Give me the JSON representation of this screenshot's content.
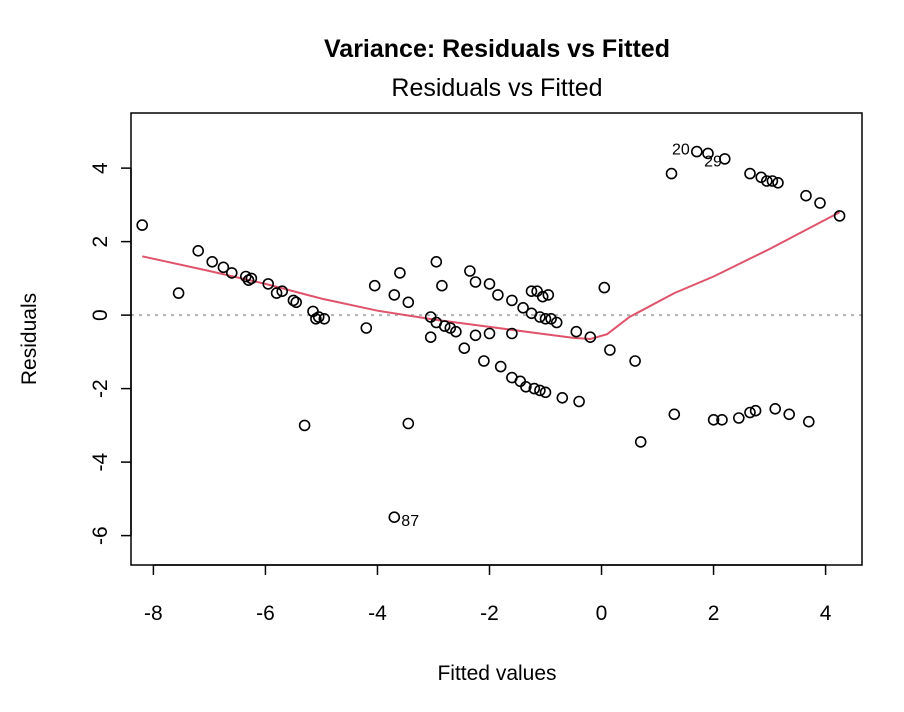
{
  "chart_data": {
    "type": "scatter",
    "title": "Variance: Residuals vs Fitted",
    "subtitle": "Residuals vs Fitted",
    "xlabel": "Fitted values",
    "ylabel": "Residuals",
    "xlim": [
      -8.4,
      4.65
    ],
    "ylim": [
      -6.8,
      5.5
    ],
    "x_ticks": [
      -8,
      -6,
      -4,
      -2,
      0,
      2,
      4
    ],
    "y_ticks": [
      -6,
      -4,
      -2,
      0,
      2,
      4
    ],
    "reference_line": {
      "y": 0,
      "style": "dotted",
      "color": "#b3b3b3"
    },
    "colors": {
      "points": "#000000",
      "smooth": "#df536b"
    },
    "points": [
      {
        "x": -8.2,
        "y": 2.45
      },
      {
        "x": -7.55,
        "y": 0.6
      },
      {
        "x": -7.2,
        "y": 1.75
      },
      {
        "x": -6.95,
        "y": 1.45
      },
      {
        "x": -6.75,
        "y": 1.3
      },
      {
        "x": -6.6,
        "y": 1.15
      },
      {
        "x": -6.35,
        "y": 1.05
      },
      {
        "x": -6.3,
        "y": 0.95
      },
      {
        "x": -6.25,
        "y": 1.0
      },
      {
        "x": -5.95,
        "y": 0.85
      },
      {
        "x": -5.8,
        "y": 0.6
      },
      {
        "x": -5.7,
        "y": 0.65
      },
      {
        "x": -5.5,
        "y": 0.4
      },
      {
        "x": -5.45,
        "y": 0.35
      },
      {
        "x": -5.3,
        "y": -3.0
      },
      {
        "x": -5.15,
        "y": 0.1
      },
      {
        "x": -5.1,
        "y": -0.1
      },
      {
        "x": -5.05,
        "y": -0.05
      },
      {
        "x": -4.95,
        "y": -0.1
      },
      {
        "x": -4.2,
        "y": -0.35
      },
      {
        "x": -4.05,
        "y": 0.8
      },
      {
        "x": -3.7,
        "y": 0.55
      },
      {
        "x": -3.6,
        "y": 1.15
      },
      {
        "x": -3.45,
        "y": 0.35
      },
      {
        "x": -3.45,
        "y": -2.95
      },
      {
        "x": -3.7,
        "y": -5.5
      },
      {
        "x": -3.05,
        "y": -0.05
      },
      {
        "x": -3.05,
        "y": -0.6
      },
      {
        "x": -2.95,
        "y": 1.45
      },
      {
        "x": -2.95,
        "y": -0.2
      },
      {
        "x": -2.85,
        "y": 0.8
      },
      {
        "x": -2.8,
        "y": -0.3
      },
      {
        "x": -2.7,
        "y": -0.35
      },
      {
        "x": -2.6,
        "y": -0.45
      },
      {
        "x": -2.45,
        "y": -0.9
      },
      {
        "x": -2.35,
        "y": 1.2
      },
      {
        "x": -2.25,
        "y": 0.9
      },
      {
        "x": -2.25,
        "y": -0.55
      },
      {
        "x": -2.1,
        "y": -1.25
      },
      {
        "x": -2.0,
        "y": 0.85
      },
      {
        "x": -2.0,
        "y": -0.5
      },
      {
        "x": -1.85,
        "y": 0.55
      },
      {
        "x": -1.8,
        "y": -1.4
      },
      {
        "x": -1.6,
        "y": 0.4
      },
      {
        "x": -1.6,
        "y": -0.5
      },
      {
        "x": -1.6,
        "y": -1.7
      },
      {
        "x": -1.45,
        "y": -1.8
      },
      {
        "x": -1.4,
        "y": 0.2
      },
      {
        "x": -1.35,
        "y": -1.95
      },
      {
        "x": -1.25,
        "y": 0.65
      },
      {
        "x": -1.25,
        "y": 0.05
      },
      {
        "x": -1.2,
        "y": -2.0
      },
      {
        "x": -1.15,
        "y": 0.65
      },
      {
        "x": -1.1,
        "y": -0.05
      },
      {
        "x": -1.1,
        "y": -2.05
      },
      {
        "x": -1.05,
        "y": 0.5
      },
      {
        "x": -1.0,
        "y": -0.1
      },
      {
        "x": -1.0,
        "y": -2.1
      },
      {
        "x": -0.95,
        "y": 0.55
      },
      {
        "x": -0.9,
        "y": -0.1
      },
      {
        "x": -0.8,
        "y": -0.2
      },
      {
        "x": -0.7,
        "y": -2.25
      },
      {
        "x": -0.45,
        "y": -0.45
      },
      {
        "x": -0.4,
        "y": -2.35
      },
      {
        "x": -0.2,
        "y": -0.6
      },
      {
        "x": 0.05,
        "y": 0.75
      },
      {
        "x": 0.15,
        "y": -0.95
      },
      {
        "x": 0.6,
        "y": -1.25
      },
      {
        "x": 0.7,
        "y": -3.45
      },
      {
        "x": 1.25,
        "y": 3.85
      },
      {
        "x": 1.3,
        "y": -2.7
      },
      {
        "x": 1.7,
        "y": 4.45
      },
      {
        "x": 1.9,
        "y": 4.4
      },
      {
        "x": 2.0,
        "y": -2.85
      },
      {
        "x": 2.15,
        "y": -2.85
      },
      {
        "x": 2.2,
        "y": 4.25
      },
      {
        "x": 2.45,
        "y": -2.8
      },
      {
        "x": 2.65,
        "y": 3.85
      },
      {
        "x": 2.65,
        "y": -2.65
      },
      {
        "x": 2.75,
        "y": -2.6
      },
      {
        "x": 2.85,
        "y": 3.75
      },
      {
        "x": 2.95,
        "y": 3.65
      },
      {
        "x": 3.05,
        "y": 3.65
      },
      {
        "x": 3.1,
        "y": -2.55
      },
      {
        "x": 3.15,
        "y": 3.6
      },
      {
        "x": 3.35,
        "y": -2.7
      },
      {
        "x": 3.65,
        "y": 3.25
      },
      {
        "x": 3.7,
        "y": -2.9
      },
      {
        "x": 3.9,
        "y": 3.05
      },
      {
        "x": 4.25,
        "y": 2.7
      }
    ],
    "labels": [
      {
        "text": "20",
        "x": 1.7,
        "y": 4.45,
        "side": "left"
      },
      {
        "text": "29",
        "x": 1.9,
        "y": 4.4,
        "side": "below"
      },
      {
        "text": "87",
        "x": -3.7,
        "y": -5.5,
        "side": "right"
      }
    ],
    "smooth_line": [
      {
        "x": -8.2,
        "y": 1.6
      },
      {
        "x": -7.0,
        "y": 1.2
      },
      {
        "x": -6.0,
        "y": 0.85
      },
      {
        "x": -5.0,
        "y": 0.45
      },
      {
        "x": -4.0,
        "y": 0.12
      },
      {
        "x": -3.0,
        "y": -0.12
      },
      {
        "x": -2.0,
        "y": -0.32
      },
      {
        "x": -1.0,
        "y": -0.52
      },
      {
        "x": -0.5,
        "y": -0.62
      },
      {
        "x": -0.2,
        "y": -0.65
      },
      {
        "x": 0.1,
        "y": -0.52
      },
      {
        "x": 0.5,
        "y": -0.05
      },
      {
        "x": 1.3,
        "y": 0.6
      },
      {
        "x": 2.0,
        "y": 1.05
      },
      {
        "x": 3.0,
        "y": 1.8
      },
      {
        "x": 4.25,
        "y": 2.8
      }
    ]
  }
}
